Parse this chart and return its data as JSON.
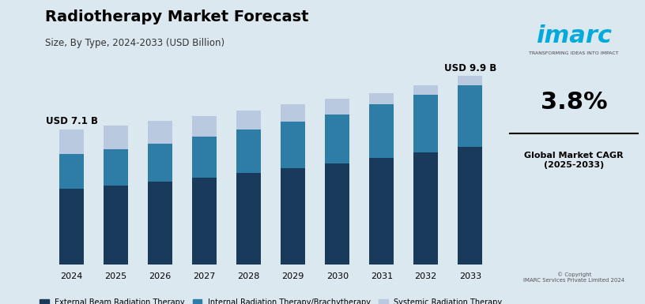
{
  "title": "Radiotherapy Market Forecast",
  "subtitle": "Size, By Type, 2024-2033 (USD Billion)",
  "years": [
    2024,
    2025,
    2026,
    2027,
    2028,
    2029,
    2030,
    2031,
    2032,
    2033
  ],
  "external_beam": [
    4.0,
    4.15,
    4.35,
    4.55,
    4.8,
    5.05,
    5.3,
    5.6,
    5.9,
    6.2
  ],
  "internal_radiation": [
    1.8,
    1.9,
    2.0,
    2.15,
    2.3,
    2.45,
    2.6,
    2.8,
    3.0,
    3.2
  ],
  "totals": [
    7.1,
    7.3,
    7.55,
    7.8,
    8.1,
    8.4,
    8.7,
    9.0,
    9.4,
    9.9
  ],
  "color_external": "#1a3a5c",
  "color_internal": "#2e7da6",
  "color_systemic": "#b8c9e0",
  "background_color": "#dce8f0",
  "bar_width": 0.55,
  "label_2024": "USD 7.1 B",
  "label_2033": "USD 9.9 B",
  "legend_labels": [
    "External Beam Radiation Therapy",
    "Internal Radiation Therapy/Brachytherapy",
    "Systemic Radiation Therapy"
  ],
  "cagr_text": "3.8%",
  "cagr_label": "Global Market CAGR\n(2025-2033)",
  "right_panel_bg": "#f5f8fa"
}
